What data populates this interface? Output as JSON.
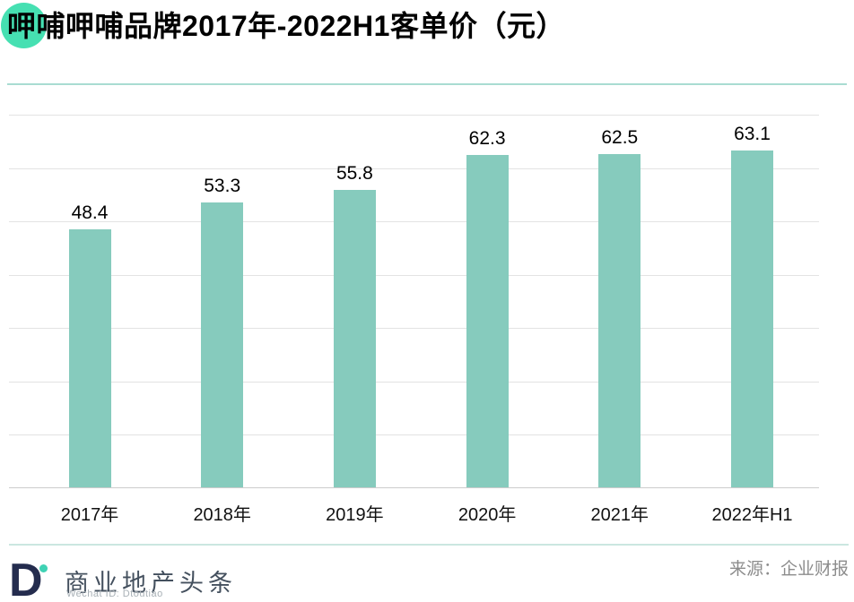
{
  "header": {
    "title": "呷哺呷哺品牌2017年-2022H1客单价（元）"
  },
  "chart_data": {
    "type": "bar",
    "title": "呷哺呷哺品牌2017年-2022H1客单价（元）",
    "categories": [
      "2017年",
      "2018年",
      "2019年",
      "2020年",
      "2021年",
      "2022年H1"
    ],
    "values": [
      48.4,
      53.3,
      55.8,
      62.3,
      62.5,
      63.1
    ],
    "value_labels": [
      "48.4",
      "53.3",
      "55.8",
      "62.3",
      "62.5",
      "63.1"
    ],
    "xlabel": "",
    "ylabel": "",
    "ylim": [
      0,
      70
    ],
    "gridline_interval": 10,
    "grid": true,
    "legend": "none",
    "y_axis_ticks_visible": false
  },
  "footer": {
    "logo_letter": "D",
    "brand_name": "商业地产头条",
    "wechat_id": "Wechat ID: Dtoutiao",
    "source": "来源：企业财报"
  },
  "colors": {
    "accent_circle": "#46e0b2",
    "bar": "#86cbbd",
    "top_divider": "#a9dcd2",
    "footer_divider": "#cbe7e0",
    "gridline": "#e3e3e3",
    "axis_line": "#cccccc",
    "logo_navy": "#242c4e",
    "logo_dot": "#3fd2b4",
    "brand_text": "#44505e",
    "source_text": "#8c8c8c"
  }
}
